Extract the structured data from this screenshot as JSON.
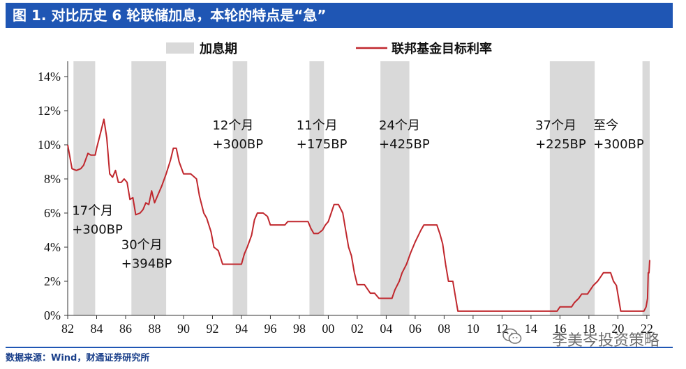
{
  "header": {
    "title": "图 1. 对比历史 6 轮联储加息，本轮的特点是“急”"
  },
  "footer": {
    "source": "数据来源：Wind，财通证券研究所",
    "watermark": "李美岑投资策略"
  },
  "colors": {
    "title_bg": "#1f56b4",
    "series": "#c0272d",
    "shade": "#d9d9d9"
  },
  "chart_data": {
    "type": "line",
    "legend": {
      "shade_label": "加息期",
      "line_label": "联邦基金目标利率"
    },
    "y_ticks": [
      "0%",
      "2%",
      "4%",
      "6%",
      "8%",
      "10%",
      "12%",
      "14%"
    ],
    "ylim": [
      0,
      14
    ],
    "x_ticks": [
      "82",
      "84",
      "86",
      "88",
      "90",
      "92",
      "94",
      "96",
      "98",
      "00",
      "02",
      "04",
      "06",
      "08",
      "10",
      "12",
      "14",
      "16",
      "18",
      "20",
      "22"
    ],
    "xlim": [
      1982,
      2022.2
    ],
    "hiking_periods": [
      {
        "start": 1982.4,
        "end": 1983.9
      },
      {
        "start": 1986.4,
        "end": 1988.8
      },
      {
        "start": 1993.4,
        "end": 1994.4
      },
      {
        "start": 1998.7,
        "end": 1999.7
      },
      {
        "start": 2003.6,
        "end": 2005.6
      },
      {
        "start": 2015.3,
        "end": 2018.4
      },
      {
        "start": 2021.7,
        "end": 2022.2
      }
    ],
    "annotations": [
      {
        "line1": "17个月",
        "line2": "+300BP",
        "x": 1982.3,
        "y": 5.9
      },
      {
        "line1": "30个月",
        "line2": "+394BP",
        "x": 1985.7,
        "y": 3.9
      },
      {
        "line1": "12个月",
        "line2": "+300BP",
        "x": 1992.0,
        "y": 10.9
      },
      {
        "line1": "11个月",
        "line2": "+175BP",
        "x": 1997.8,
        "y": 10.9
      },
      {
        "line1": "24个月",
        "line2": "+425BP",
        "x": 2003.5,
        "y": 10.9
      },
      {
        "line1": "37个月",
        "line2": "+225BP",
        "x": 2014.3,
        "y": 10.9
      },
      {
        "line1": "至今",
        "line2": "+300BP",
        "x": 2018.3,
        "y": 10.9
      }
    ],
    "series": [
      {
        "points": [
          [
            1982.0,
            10.0
          ],
          [
            1982.3,
            8.6
          ],
          [
            1982.6,
            8.5
          ],
          [
            1982.9,
            8.6
          ],
          [
            1983.1,
            8.8
          ],
          [
            1983.4,
            9.5
          ],
          [
            1983.6,
            9.4
          ],
          [
            1983.9,
            9.4
          ],
          [
            1984.0,
            9.8
          ],
          [
            1984.3,
            10.8
          ],
          [
            1984.5,
            11.5
          ],
          [
            1984.7,
            10.4
          ],
          [
            1984.9,
            8.3
          ],
          [
            1985.1,
            8.1
          ],
          [
            1985.3,
            8.5
          ],
          [
            1985.5,
            7.8
          ],
          [
            1985.7,
            7.8
          ],
          [
            1985.9,
            8.0
          ],
          [
            1986.1,
            7.8
          ],
          [
            1986.3,
            6.8
          ],
          [
            1986.5,
            6.9
          ],
          [
            1986.7,
            5.9
          ],
          [
            1987.0,
            6.0
          ],
          [
            1987.2,
            6.2
          ],
          [
            1987.4,
            6.6
          ],
          [
            1987.6,
            6.5
          ],
          [
            1987.8,
            7.3
          ],
          [
            1988.0,
            6.6
          ],
          [
            1988.2,
            7.0
          ],
          [
            1988.5,
            7.6
          ],
          [
            1988.8,
            8.3
          ],
          [
            1989.1,
            9.1
          ],
          [
            1989.3,
            9.8
          ],
          [
            1989.5,
            9.8
          ],
          [
            1989.7,
            9.0
          ],
          [
            1990.0,
            8.3
          ],
          [
            1990.5,
            8.3
          ],
          [
            1990.9,
            8.0
          ],
          [
            1991.1,
            7.0
          ],
          [
            1991.4,
            6.0
          ],
          [
            1991.6,
            5.7
          ],
          [
            1991.9,
            4.9
          ],
          [
            1992.1,
            4.0
          ],
          [
            1992.4,
            3.8
          ],
          [
            1992.7,
            3.0
          ],
          [
            1993.0,
            3.0
          ],
          [
            1993.5,
            3.0
          ],
          [
            1994.0,
            3.0
          ],
          [
            1994.2,
            3.6
          ],
          [
            1994.4,
            4.0
          ],
          [
            1994.7,
            4.7
          ],
          [
            1994.9,
            5.6
          ],
          [
            1995.1,
            6.0
          ],
          [
            1995.5,
            6.0
          ],
          [
            1995.8,
            5.8
          ],
          [
            1996.0,
            5.3
          ],
          [
            1996.5,
            5.3
          ],
          [
            1997.0,
            5.3
          ],
          [
            1997.2,
            5.5
          ],
          [
            1997.6,
            5.5
          ],
          [
            1998.0,
            5.5
          ],
          [
            1998.6,
            5.5
          ],
          [
            1998.8,
            5.1
          ],
          [
            1999.0,
            4.8
          ],
          [
            1999.3,
            4.8
          ],
          [
            1999.6,
            5.0
          ],
          [
            1999.8,
            5.3
          ],
          [
            2000.0,
            5.5
          ],
          [
            2000.2,
            6.0
          ],
          [
            2000.4,
            6.5
          ],
          [
            2000.7,
            6.5
          ],
          [
            2001.0,
            6.0
          ],
          [
            2001.2,
            5.0
          ],
          [
            2001.4,
            4.0
          ],
          [
            2001.6,
            3.5
          ],
          [
            2001.8,
            2.5
          ],
          [
            2002.0,
            1.8
          ],
          [
            2002.5,
            1.8
          ],
          [
            2002.9,
            1.3
          ],
          [
            2003.2,
            1.3
          ],
          [
            2003.5,
            1.0
          ],
          [
            2004.0,
            1.0
          ],
          [
            2004.4,
            1.0
          ],
          [
            2004.6,
            1.5
          ],
          [
            2004.9,
            2.0
          ],
          [
            2005.1,
            2.5
          ],
          [
            2005.4,
            3.0
          ],
          [
            2005.7,
            3.7
          ],
          [
            2006.0,
            4.3
          ],
          [
            2006.4,
            5.0
          ],
          [
            2006.6,
            5.3
          ],
          [
            2007.0,
            5.3
          ],
          [
            2007.5,
            5.3
          ],
          [
            2007.7,
            4.8
          ],
          [
            2007.9,
            4.2
          ],
          [
            2008.1,
            3.0
          ],
          [
            2008.3,
            2.0
          ],
          [
            2008.6,
            2.0
          ],
          [
            2008.8,
            1.0
          ],
          [
            2008.95,
            0.25
          ],
          [
            2010.0,
            0.25
          ],
          [
            2012.0,
            0.25
          ],
          [
            2014.0,
            0.25
          ],
          [
            2015.8,
            0.25
          ],
          [
            2016.0,
            0.5
          ],
          [
            2016.8,
            0.5
          ],
          [
            2017.0,
            0.75
          ],
          [
            2017.3,
            1.0
          ],
          [
            2017.5,
            1.25
          ],
          [
            2017.9,
            1.25
          ],
          [
            2018.1,
            1.5
          ],
          [
            2018.3,
            1.75
          ],
          [
            2018.6,
            2.0
          ],
          [
            2018.8,
            2.25
          ],
          [
            2019.0,
            2.5
          ],
          [
            2019.5,
            2.5
          ],
          [
            2019.7,
            2.0
          ],
          [
            2019.9,
            1.75
          ],
          [
            2020.2,
            0.25
          ],
          [
            2021.0,
            0.25
          ],
          [
            2021.5,
            0.25
          ],
          [
            2021.8,
            0.25
          ],
          [
            2021.95,
            0.5
          ],
          [
            2022.05,
            1.0
          ],
          [
            2022.1,
            2.5
          ],
          [
            2022.15,
            2.5
          ],
          [
            2022.2,
            3.25
          ]
        ]
      }
    ]
  }
}
